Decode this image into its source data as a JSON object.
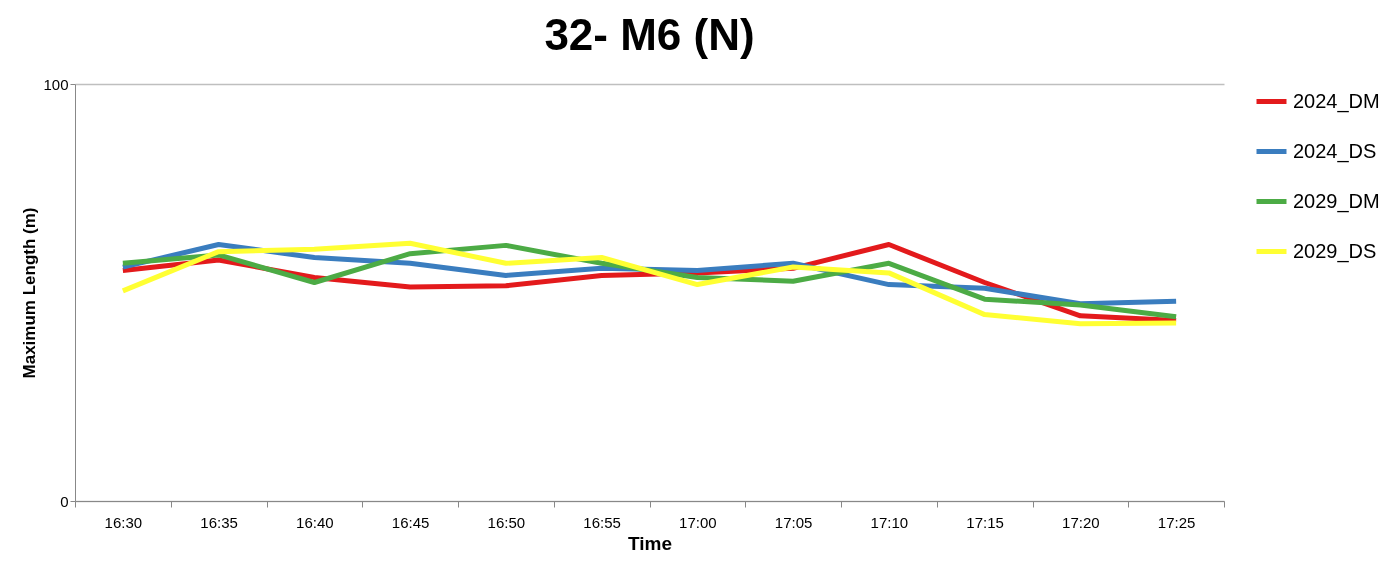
{
  "chart_data": {
    "type": "line",
    "title": "32- M6 (N)",
    "xlabel": "Time",
    "ylabel": "Maximum Length (m)",
    "categories": [
      "16:30",
      "16:35",
      "16:40",
      "16:45",
      "16:50",
      "16:55",
      "17:00",
      "17:05",
      "17:10",
      "17:15",
      "17:20",
      "17:25"
    ],
    "ylim": [
      0,
      100
    ],
    "yticks": [
      0,
      100
    ],
    "grid": "y",
    "legend": "right",
    "series": [
      {
        "name": "2024_DM",
        "color": "#e31a1c",
        "values": [
          55.3,
          57.8,
          53.6,
          51.3,
          51.6,
          54.1,
          54.7,
          55.8,
          61.5,
          52.4,
          44.4,
          43.3
        ]
      },
      {
        "name": "2024_DS",
        "color": "#3a7dbf",
        "values": [
          56.1,
          61.5,
          58.4,
          57.0,
          54.1,
          55.8,
          55.3,
          57.0,
          51.9,
          51.0,
          47.3,
          47.9
        ]
      },
      {
        "name": "2029_DM",
        "color": "#4cab45",
        "values": [
          57.0,
          59.0,
          52.4,
          59.3,
          61.3,
          57.0,
          53.6,
          52.7,
          57.0,
          48.4,
          47.0,
          44.2
        ]
      },
      {
        "name": "2029_DS",
        "color": "#ffff33",
        "values": [
          50.4,
          59.8,
          60.4,
          61.8,
          57.0,
          58.4,
          51.9,
          56.1,
          54.7,
          44.7,
          42.5,
          42.7
        ]
      }
    ]
  }
}
